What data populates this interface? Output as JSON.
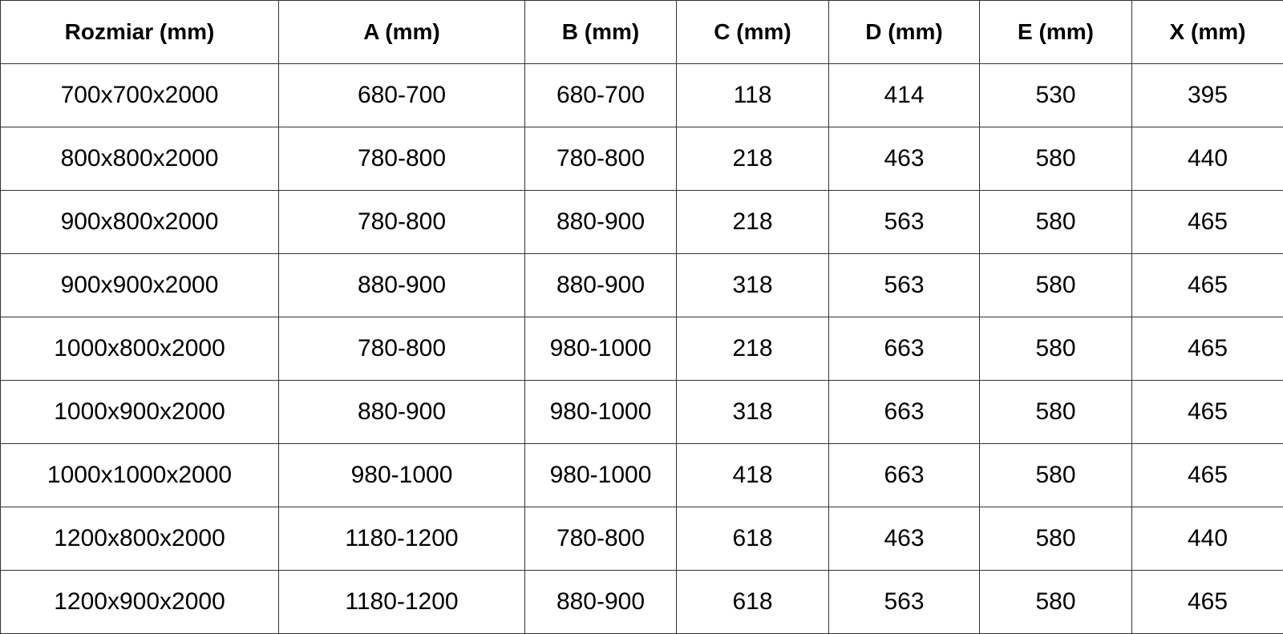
{
  "table": {
    "headers": [
      "Rozmiar (mm)",
      "A (mm)",
      "B (mm)",
      "C (mm)",
      "D (mm)",
      "E (mm)",
      "X (mm)"
    ],
    "rows": [
      [
        "700x700x2000",
        "680-700",
        "680-700",
        "118",
        "414",
        "530",
        "395"
      ],
      [
        "800x800x2000",
        "780-800",
        "780-800",
        "218",
        "463",
        "580",
        "440"
      ],
      [
        "900x800x2000",
        "780-800",
        "880-900",
        "218",
        "563",
        "580",
        "465"
      ],
      [
        "900x900x2000",
        "880-900",
        "880-900",
        "318",
        "563",
        "580",
        "465"
      ],
      [
        "1000x800x2000",
        "780-800",
        "980-1000",
        "218",
        "663",
        "580",
        "465"
      ],
      [
        "1000x900x2000",
        "880-900",
        "980-1000",
        "318",
        "663",
        "580",
        "465"
      ],
      [
        "1000x1000x2000",
        "980-1000",
        "980-1000",
        "418",
        "663",
        "580",
        "465"
      ],
      [
        "1200x800x2000",
        "1180-1200",
        "780-800",
        "618",
        "463",
        "580",
        "440"
      ],
      [
        "1200x900x2000",
        "1180-1200",
        "880-900",
        "618",
        "563",
        "580",
        "465"
      ]
    ]
  }
}
